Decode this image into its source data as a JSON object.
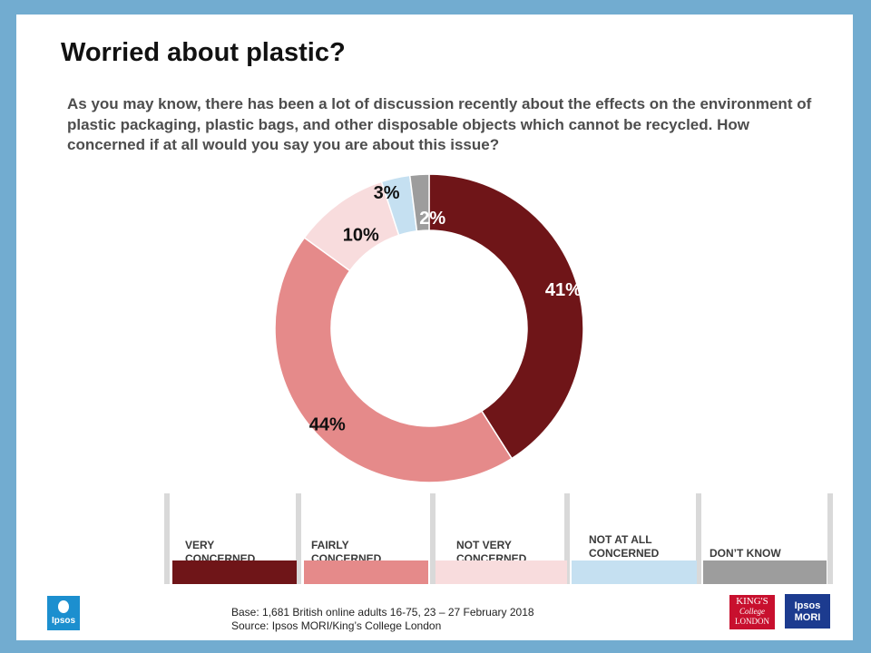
{
  "title": "Worried about plastic?",
  "question": "As you may know, there has been a lot of discussion recently about the effects on the environment of plastic packaging, plastic bags, and other disposable objects which cannot be recycled. How concerned if at all would you say you are about this issue?",
  "chart_data": {
    "type": "pie",
    "categories": [
      "VERY CONCERNED",
      "FAIRLY CONCERNED",
      "NOT VERY CONCERNED",
      "NOT AT ALL CONCERNED",
      "DON’T KNOW"
    ],
    "values": [
      41,
      44,
      10,
      3,
      2
    ],
    "labels": [
      "41%",
      "44%",
      "10%",
      "3%",
      "2%"
    ],
    "colors": [
      "#6f1518",
      "#e58a8a",
      "#f8dcdd",
      "#c5e0f1",
      "#9d9d9d"
    ],
    "legend_placement": "bottom"
  },
  "legend": [
    {
      "line1": "VERY",
      "line2": "CONCERNED"
    },
    {
      "line1": "FAIRLY",
      "line2": "CONCERNED"
    },
    {
      "line1": "NOT VERY",
      "line2": "CONCERNED"
    },
    {
      "line1": "NOT AT ALL",
      "line2": "CONCERNED"
    },
    {
      "line1": "",
      "line2": "DON’T KNOW"
    }
  ],
  "footer": {
    "base": "Base: 1,681 British online adults 16-75, 23 – 27 February 2018",
    "source": "Source: Ipsos MORI/King’s College London"
  },
  "logos": {
    "ipsos_badge": "Ipsos",
    "ipsos_mori": "Ipsos MORI",
    "kings_line1": "KING'S",
    "kings_line2": "College",
    "kings_line3": "LONDON",
    "mori_badge_line1": "Ipsos",
    "mori_badge_line2": "MORI"
  }
}
